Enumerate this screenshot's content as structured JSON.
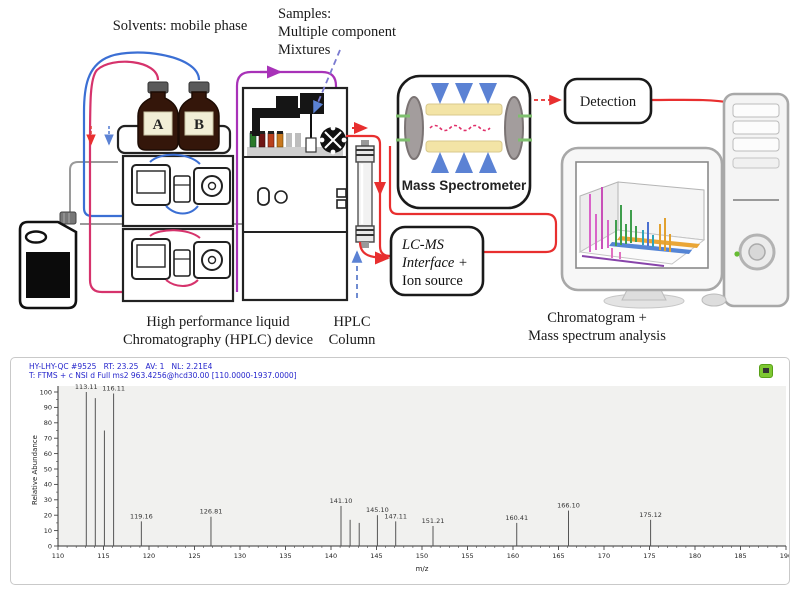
{
  "diagram": {
    "solvents_label": "Solvents: mobile phase",
    "samples_label_lines": [
      "Samples:",
      "Multiple component",
      "Mixtures"
    ],
    "bottle_a": "A",
    "bottle_b": "B",
    "mass_spectrometer_label": "Mass Spectrometer",
    "detection_label": "Detection",
    "lcms_lines": [
      "LC-MS",
      "Interface +",
      "Ion source"
    ],
    "hplc_caption_lines": [
      "High performance liquid",
      "Chromatography (HPLC) device"
    ],
    "column_caption_lines": [
      "HPLC",
      "Column"
    ],
    "analysis_caption_lines": [
      "Chromatogram +",
      "Mass spectrum analysis"
    ],
    "colors": {
      "tube_red": "#e82f2f",
      "tube_blue": "#3b6fd4",
      "tube_crimson": "#d6336c",
      "tube_magenta": "#a832b8",
      "tube_gray": "#9a9a9a",
      "arrow_blue": "#5b82d4",
      "ms_yellow": "#f3e4a6",
      "ms_green": "#7fbf6f",
      "ms_blue": "#4a90d9"
    }
  },
  "spectrum": {
    "header_line1": "HY-LHY-QC #9525   RT: 23.25   AV: 1   NL: 2.21E4",
    "header_line2": "T: FTMS + c NSI d Full ms2 963.4256@hcd30.00 [110.0000-1937.0000]",
    "window_icon": "green-spectrum-icon"
  },
  "chart_data": {
    "type": "bar",
    "title": "",
    "xlabel": "m/z",
    "ylabel": "Relative Abundance",
    "xlim": [
      110,
      190
    ],
    "ylim": [
      0,
      100
    ],
    "x_major_tick": 5,
    "x_minor_tick": 1,
    "y_major_tick": 10,
    "y_minor_tick": 5,
    "grid": "off",
    "peaks": [
      {
        "mz": 113.11,
        "intensity": 100,
        "label": "113.11"
      },
      {
        "mz": 114.1,
        "intensity": 96,
        "label": ""
      },
      {
        "mz": 115.1,
        "intensity": 75,
        "label": ""
      },
      {
        "mz": 116.11,
        "intensity": 99,
        "label": "116.11"
      },
      {
        "mz": 119.16,
        "intensity": 16,
        "label": "119.16"
      },
      {
        "mz": 126.81,
        "intensity": 19,
        "label": "126.81"
      },
      {
        "mz": 141.1,
        "intensity": 26,
        "label": "141.10"
      },
      {
        "mz": 142.1,
        "intensity": 17,
        "label": ""
      },
      {
        "mz": 143.1,
        "intensity": 15,
        "label": ""
      },
      {
        "mz": 145.1,
        "intensity": 20,
        "label": "145.10"
      },
      {
        "mz": 147.11,
        "intensity": 16,
        "label": "147.11"
      },
      {
        "mz": 151.21,
        "intensity": 13,
        "label": "151.21"
      },
      {
        "mz": 160.41,
        "intensity": 15,
        "label": "160.41"
      },
      {
        "mz": 166.1,
        "intensity": 23,
        "label": "166.10"
      },
      {
        "mz": 175.12,
        "intensity": 17,
        "label": "175.12"
      }
    ]
  }
}
